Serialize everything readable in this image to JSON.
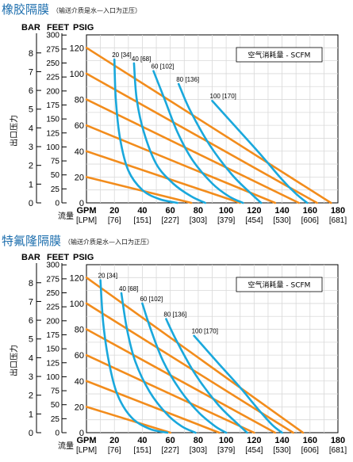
{
  "chart_data": [
    {
      "type": "line",
      "title": "橡胶隔膜",
      "subtitle": "（输送介质是水—入口为正压）",
      "y_units": [
        "BAR",
        "FEET",
        "PSIG"
      ],
      "ylabel": "出口压力",
      "xlabel": "流量",
      "x_units": [
        "GPM",
        "[LPM]"
      ],
      "legend": "空气消耗量 - SCFM",
      "legend_position": "top-right",
      "grid": true,
      "xlim": [
        0,
        180
      ],
      "ylim_psig": [
        0,
        130
      ],
      "x_ticks": [
        {
          "gpm": "GPM",
          "lpm": "[LPM]"
        },
        {
          "gpm": "20",
          "lpm": "[76]"
        },
        {
          "gpm": "40",
          "lpm": "[151]"
        },
        {
          "gpm": "60",
          "lpm": "[227]"
        },
        {
          "gpm": "80",
          "lpm": "[303]"
        },
        {
          "gpm": "100",
          "lpm": "[379]"
        },
        {
          "gpm": "120",
          "lpm": "[454]"
        },
        {
          "gpm": "140",
          "lpm": "[530]"
        },
        {
          "gpm": "160",
          "lpm": "[606]"
        },
        {
          "gpm": "180",
          "lpm": "[681]"
        }
      ],
      "bar_ticks": [
        "0",
        "1",
        "2",
        "3",
        "4",
        "5",
        "6",
        "7",
        "8"
      ],
      "feet_ticks": [
        "0",
        "25",
        "50",
        "75",
        "100",
        "125",
        "150",
        "175",
        "200",
        "225",
        "250",
        "275",
        "300"
      ],
      "psig_ticks": [
        "0",
        "20",
        "40",
        "60",
        "80",
        "100",
        "120"
      ],
      "air_pressure_series": [
        {
          "points": [
            [
              0,
              120
            ],
            [
              175,
              0
            ]
          ]
        },
        {
          "points": [
            [
              0,
              100
            ],
            [
              165,
              0
            ]
          ]
        },
        {
          "points": [
            [
              0,
              80
            ],
            [
              152,
              0
            ]
          ]
        },
        {
          "points": [
            [
              0,
              60
            ],
            [
              135,
              0
            ]
          ]
        },
        {
          "points": [
            [
              0,
              40
            ],
            [
              110,
              0
            ]
          ]
        },
        {
          "points": [
            [
              0,
              20
            ],
            [
              75,
              0
            ]
          ]
        }
      ],
      "air_consumption_series": [
        {
          "name": "20 [34]",
          "points": [
            [
              20,
              111
            ],
            [
              21,
              80
            ],
            [
              24,
              50
            ],
            [
              30,
              25
            ],
            [
              40,
              10
            ],
            [
              52,
              3
            ],
            [
              65,
              0
            ]
          ]
        },
        {
          "name": "40 [68]",
          "points": [
            [
              34,
              108
            ],
            [
              36,
              80
            ],
            [
              41,
              55
            ],
            [
              50,
              30
            ],
            [
              62,
              15
            ],
            [
              75,
              5
            ],
            [
              85,
              0
            ]
          ]
        },
        {
          "name": "60 [102]",
          "points": [
            [
              48,
              102
            ],
            [
              56,
              80
            ],
            [
              65,
              55
            ],
            [
              76,
              33
            ],
            [
              90,
              15
            ],
            [
              102,
              5
            ],
            [
              112,
              0
            ]
          ]
        },
        {
          "name": "80 [136]",
          "points": [
            [
              66,
              92
            ],
            [
              74,
              72
            ],
            [
              88,
              45
            ],
            [
              104,
              22
            ],
            [
              118,
              7
            ],
            [
              125,
              0
            ]
          ]
        },
        {
          "name": "100 [170]",
          "points": [
            [
              90,
              79
            ],
            [
              110,
              55
            ],
            [
              125,
              37
            ],
            [
              140,
              18
            ],
            [
              150,
              7
            ],
            [
              158,
              0
            ]
          ]
        }
      ]
    },
    {
      "type": "line",
      "title": "特氟隆隔膜",
      "subtitle": "（输送介质是水—入口为正压）",
      "y_units": [
        "BAR",
        "FEET",
        "PSIG"
      ],
      "ylabel": "出口压力",
      "xlabel": "流量",
      "x_units": [
        "GPM",
        "[LPM]"
      ],
      "legend": "空气消耗量 - SCFM",
      "legend_position": "top-right",
      "grid": true,
      "xlim": [
        0,
        180
      ],
      "ylim_psig": [
        0,
        130
      ],
      "x_ticks": [
        {
          "gpm": "GPM",
          "lpm": "[LPM]"
        },
        {
          "gpm": "20",
          "lpm": "[76]"
        },
        {
          "gpm": "40",
          "lpm": "[151]"
        },
        {
          "gpm": "60",
          "lpm": "[227]"
        },
        {
          "gpm": "80",
          "lpm": "[303]"
        },
        {
          "gpm": "100",
          "lpm": "[379]"
        },
        {
          "gpm": "120",
          "lpm": "[454]"
        },
        {
          "gpm": "140",
          "lpm": "[530]"
        },
        {
          "gpm": "160",
          "lpm": "[606]"
        },
        {
          "gpm": "180",
          "lpm": "[681]"
        }
      ],
      "bar_ticks": [
        "0",
        "1",
        "2",
        "3",
        "4",
        "5",
        "6",
        "7",
        "8"
      ],
      "feet_ticks": [
        "0",
        "25",
        "50",
        "75",
        "100",
        "125",
        "150",
        "175",
        "200",
        "225",
        "250",
        "275",
        "300"
      ],
      "psig_ticks": [
        "0",
        "20",
        "40",
        "60",
        "80",
        "100",
        "120"
      ],
      "air_pressure_series": [
        {
          "points": [
            [
              0,
              120
            ],
            [
              155,
              0
            ]
          ]
        },
        {
          "points": [
            [
              0,
              100
            ],
            [
              148,
              0
            ]
          ]
        },
        {
          "points": [
            [
              0,
              80
            ],
            [
              135,
              0
            ]
          ]
        },
        {
          "points": [
            [
              0,
              60
            ],
            [
              120,
              0
            ]
          ]
        },
        {
          "points": [
            [
              0,
              40
            ],
            [
              95,
              0
            ]
          ]
        },
        {
          "points": [
            [
              0,
              20
            ],
            [
              60,
              0
            ]
          ]
        }
      ],
      "air_consumption_series": [
        {
          "name": "20 [34]",
          "points": [
            [
              10,
              118
            ],
            [
              12,
              85
            ],
            [
              16,
              55
            ],
            [
              22,
              30
            ],
            [
              32,
              12
            ],
            [
              45,
              3
            ],
            [
              58,
              0
            ]
          ]
        },
        {
          "name": "40 [68]",
          "points": [
            [
              25,
              108
            ],
            [
              29,
              80
            ],
            [
              35,
              55
            ],
            [
              45,
              32
            ],
            [
              57,
              15
            ],
            [
              68,
              5
            ],
            [
              78,
              0
            ]
          ]
        },
        {
          "name": "60 [102]",
          "points": [
            [
              40,
              100
            ],
            [
              46,
              80
            ],
            [
              55,
              55
            ],
            [
              67,
              33
            ],
            [
              80,
              16
            ],
            [
              92,
              5
            ],
            [
              100,
              0
            ]
          ]
        },
        {
          "name": "80 [136]",
          "points": [
            [
              57,
              88
            ],
            [
              65,
              70
            ],
            [
              78,
              45
            ],
            [
              94,
              22
            ],
            [
              108,
              7
            ],
            [
              115,
              0
            ]
          ]
        },
        {
          "name": "100 [170]",
          "points": [
            [
              77,
              75
            ],
            [
              95,
              53
            ],
            [
              110,
              35
            ],
            [
              123,
              18
            ],
            [
              133,
              6
            ],
            [
              140,
              0
            ]
          ]
        }
      ]
    }
  ],
  "colors": {
    "orange": "#f28c1c",
    "blue": "#1aa8dc",
    "title": "#1e6fae",
    "grid": "#d9d9d9"
  }
}
